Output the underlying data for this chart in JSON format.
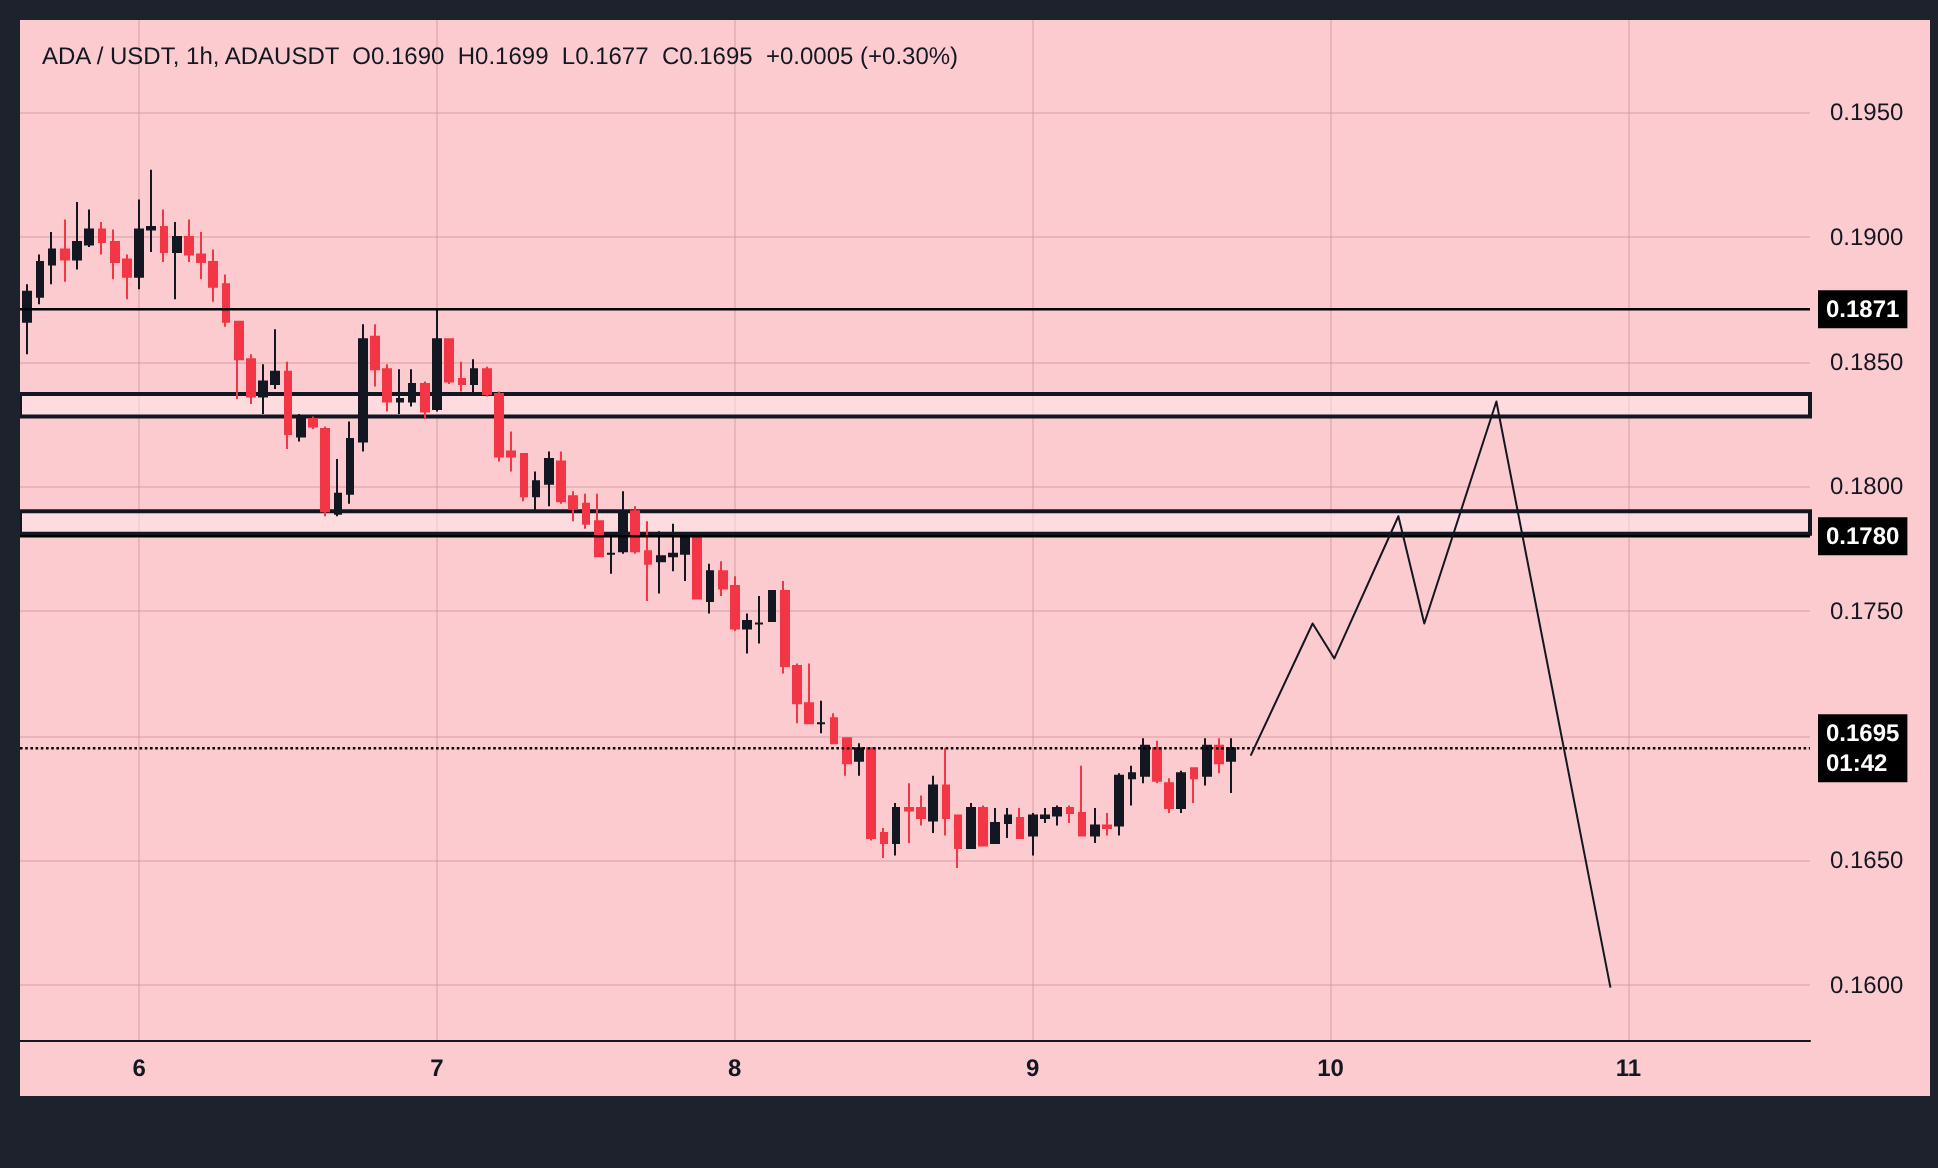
{
  "chart_data": {
    "type": "candlestick",
    "title": "ADA / USDT, 1h, ADAUSDT  O0.1690  H0.1699  L0.1677  C0.1695  +0.0005 (+0.30%)",
    "x": [
      5.625,
      5.6667,
      5.7083,
      5.75,
      5.7917,
      5.8333,
      5.875,
      5.9167,
      5.9583,
      6,
      6.0417,
      6.0833,
      6.125,
      6.1667,
      6.2083,
      6.25,
      6.2917,
      6.3333,
      6.375,
      6.4167,
      6.4583,
      6.5,
      6.5417,
      6.5833,
      6.625,
      6.6667,
      6.7083,
      6.75,
      6.7917,
      6.8333,
      6.875,
      6.9167,
      6.9583,
      7,
      7.0417,
      7.0833,
      7.125,
      7.1667,
      7.2083,
      7.25,
      7.2917,
      7.3333,
      7.375,
      7.4167,
      7.4583,
      7.5,
      7.5417,
      7.5833,
      7.625,
      7.6667,
      7.7083,
      7.75,
      7.7917,
      7.8333,
      7.875,
      7.9167,
      7.9583,
      8,
      8.0417,
      8.0833,
      8.125,
      8.1667,
      8.2083,
      8.25,
      8.2917,
      8.3333,
      8.375,
      8.4167,
      8.4583,
      8.5,
      8.5417,
      8.5833,
      8.625,
      8.6667,
      8.7083,
      8.75,
      8.7917,
      8.8333,
      8.875,
      8.9167,
      8.9583,
      9,
      9.0417,
      9.0833,
      9.125,
      9.1667,
      9.2083,
      9.25,
      9.2917,
      9.3333,
      9.375,
      9.4167,
      9.4583,
      9.5,
      9.5417,
      9.5833,
      9.625,
      9.6667
    ],
    "ohlc": [
      [
        0.1866,
        0.1881,
        0.1853,
        0.1878
      ],
      [
        0.1876,
        0.1893,
        0.1873,
        0.189
      ],
      [
        0.1889,
        0.1902,
        0.1881,
        0.1895
      ],
      [
        0.1895,
        0.1907,
        0.1882,
        0.1891
      ],
      [
        0.1891,
        0.1914,
        0.1887,
        0.1898
      ],
      [
        0.1897,
        0.1911,
        0.1896,
        0.1903
      ],
      [
        0.1903,
        0.1906,
        0.1893,
        0.1898
      ],
      [
        0.1898,
        0.1903,
        0.1883,
        0.189
      ],
      [
        0.1891,
        0.1893,
        0.1875,
        0.1884
      ],
      [
        0.1884,
        0.1915,
        0.1879,
        0.1903
      ],
      [
        0.1903,
        0.1927,
        0.1894,
        0.1904
      ],
      [
        0.1904,
        0.1911,
        0.189,
        0.1894
      ],
      [
        0.1894,
        0.1906,
        0.1875,
        0.19
      ],
      [
        0.19,
        0.1907,
        0.189,
        0.1893
      ],
      [
        0.1893,
        0.1902,
        0.1883,
        0.189
      ],
      [
        0.189,
        0.1895,
        0.1874,
        0.188
      ],
      [
        0.1881,
        0.1885,
        0.1864,
        0.1866
      ],
      [
        0.1866,
        0.1866,
        0.1835,
        0.1851
      ],
      [
        0.1851,
        0.1853,
        0.1833,
        0.1836
      ],
      [
        0.1836,
        0.1849,
        0.1829,
        0.1842
      ],
      [
        0.1841,
        0.1863,
        0.1839,
        0.1846
      ],
      [
        0.1846,
        0.185,
        0.1815,
        0.1821
      ],
      [
        0.182,
        0.1829,
        0.1818,
        0.1827
      ],
      [
        0.1827,
        0.1828,
        0.1823,
        0.1824
      ],
      [
        0.1823,
        0.1824,
        0.1788,
        0.179
      ],
      [
        0.1789,
        0.1811,
        0.1788,
        0.1797
      ],
      [
        0.1797,
        0.1826,
        0.1793,
        0.1819
      ],
      [
        0.1818,
        0.1865,
        0.1814,
        0.1859
      ],
      [
        0.186,
        0.1865,
        0.184,
        0.1847
      ],
      [
        0.1847,
        0.1849,
        0.183,
        0.1834
      ],
      [
        0.1834,
        0.1847,
        0.1829,
        0.1835
      ],
      [
        0.1834,
        0.1847,
        0.1832,
        0.1841
      ],
      [
        0.1841,
        0.1842,
        0.1827,
        0.183
      ],
      [
        0.1831,
        0.1871,
        0.183,
        0.1859
      ],
      [
        0.1859,
        0.1859,
        0.1841,
        0.1842
      ],
      [
        0.1843,
        0.185,
        0.1838,
        0.1841
      ],
      [
        0.1841,
        0.1851,
        0.1837,
        0.1847
      ],
      [
        0.1847,
        0.1848,
        0.1836,
        0.1837
      ],
      [
        0.1837,
        0.1838,
        0.181,
        0.1812
      ],
      [
        0.1814,
        0.1822,
        0.1806,
        0.1812
      ],
      [
        0.1813,
        0.1813,
        0.1794,
        0.1796
      ],
      [
        0.1796,
        0.1806,
        0.179,
        0.1802
      ],
      [
        0.1801,
        0.1814,
        0.1792,
        0.1811
      ],
      [
        0.181,
        0.1814,
        0.1793,
        0.1794
      ],
      [
        0.1796,
        0.1798,
        0.1786,
        0.1791
      ],
      [
        0.1793,
        0.1797,
        0.1783,
        0.1785
      ],
      [
        0.1786,
        0.1797,
        0.1772,
        0.1772
      ],
      [
        0.1773,
        0.178,
        0.1765,
        0.1773
      ],
      [
        0.1774,
        0.1798,
        0.1773,
        0.179
      ],
      [
        0.179,
        0.1792,
        0.1773,
        0.1774
      ],
      [
        0.1774,
        0.1786,
        0.1754,
        0.1769
      ],
      [
        0.177,
        0.1782,
        0.1757,
        0.1772
      ],
      [
        0.1772,
        0.1785,
        0.1766,
        0.1773
      ],
      [
        0.1773,
        0.1781,
        0.1762,
        0.178
      ],
      [
        0.178,
        0.178,
        0.1755,
        0.1755
      ],
      [
        0.1754,
        0.1769,
        0.1749,
        0.1766
      ],
      [
        0.1766,
        0.177,
        0.1756,
        0.1759
      ],
      [
        0.176,
        0.1764,
        0.1742,
        0.1743
      ],
      [
        0.1743,
        0.1749,
        0.1733,
        0.1746
      ],
      [
        0.1745,
        0.1756,
        0.1737,
        0.1745
      ],
      [
        0.1746,
        0.1758,
        0.1746,
        0.1758
      ],
      [
        0.1758,
        0.1762,
        0.1725,
        0.1728
      ],
      [
        0.1728,
        0.1729,
        0.1705,
        0.1713
      ],
      [
        0.1713,
        0.1729,
        0.1705,
        0.1705
      ],
      [
        0.1705,
        0.1714,
        0.1701,
        0.1705
      ],
      [
        0.1707,
        0.1709,
        0.1697,
        0.1697
      ],
      [
        0.1699,
        0.1699,
        0.1684,
        0.1689
      ],
      [
        0.169,
        0.1697,
        0.1684,
        0.1695
      ],
      [
        0.1695,
        0.1695,
        0.1658,
        0.1659
      ],
      [
        0.1661,
        0.1663,
        0.1651,
        0.1657
      ],
      [
        0.1657,
        0.1673,
        0.1652,
        0.1671
      ],
      [
        0.1671,
        0.1681,
        0.1657,
        0.167
      ],
      [
        0.1671,
        0.1676,
        0.1664,
        0.1667
      ],
      [
        0.1666,
        0.1684,
        0.1661,
        0.168
      ],
      [
        0.168,
        0.1695,
        0.166,
        0.1667
      ],
      [
        0.1668,
        0.1668,
        0.1647,
        0.1655
      ],
      [
        0.1655,
        0.1673,
        0.1655,
        0.1671
      ],
      [
        0.1671,
        0.1672,
        0.1656,
        0.1656
      ],
      [
        0.1657,
        0.1671,
        0.1657,
        0.1665
      ],
      [
        0.1665,
        0.1671,
        0.1659,
        0.1668
      ],
      [
        0.1667,
        0.1671,
        0.1659,
        0.1659
      ],
      [
        0.166,
        0.1669,
        0.1652,
        0.1668
      ],
      [
        0.1667,
        0.1671,
        0.1665,
        0.1668
      ],
      [
        0.1668,
        0.1672,
        0.1664,
        0.1671
      ],
      [
        0.1671,
        0.1672,
        0.1665,
        0.1669
      ],
      [
        0.1669,
        0.1688,
        0.166,
        0.166
      ],
      [
        0.166,
        0.1671,
        0.1657,
        0.1664
      ],
      [
        0.1664,
        0.1669,
        0.166,
        0.1663
      ],
      [
        0.1664,
        0.1685,
        0.166,
        0.1684
      ],
      [
        0.1683,
        0.1688,
        0.1672,
        0.1685
      ],
      [
        0.1684,
        0.1699,
        0.1681,
        0.1696
      ],
      [
        0.1695,
        0.1698,
        0.1681,
        0.1682
      ],
      [
        0.1681,
        0.1683,
        0.1669,
        0.1671
      ],
      [
        0.1671,
        0.1686,
        0.1669,
        0.1685
      ],
      [
        0.1687,
        0.1687,
        0.1673,
        0.1683
      ],
      [
        0.1684,
        0.1699,
        0.168,
        0.1696
      ],
      [
        0.1696,
        0.1699,
        0.1685,
        0.1689
      ],
      [
        0.169,
        0.1699,
        0.1677,
        0.1695
      ]
    ],
    "colors": [
      "#131722",
      "#131722",
      "#131722",
      "#f23645",
      "#131722",
      "#131722",
      "#f23645",
      "#f23645",
      "#f23645",
      "#131722",
      "#131722",
      "#f23645",
      "#131722",
      "#f23645",
      "#f23645",
      "#f23645",
      "#f23645",
      "#f23645",
      "#f23645",
      "#131722",
      "#131722",
      "#f23645",
      "#131722",
      "#f23645",
      "#f23645",
      "#131722",
      "#131722",
      "#131722",
      "#f23645",
      "#f23645",
      "#131722",
      "#131722",
      "#f23645",
      "#131722",
      "#f23645",
      "#f23645",
      "#131722",
      "#f23645",
      "#f23645",
      "#f23645",
      "#f23645",
      "#131722",
      "#131722",
      "#f23645",
      "#f23645",
      "#f23645",
      "#f23645",
      "#131722",
      "#131722",
      "#f23645",
      "#f23645",
      "#131722",
      "#131722",
      "#131722",
      "#f23645",
      "#131722",
      "#f23645",
      "#f23645",
      "#131722",
      "#131722",
      "#131722",
      "#f23645",
      "#f23645",
      "#f23645",
      "#131722",
      "#f23645",
      "#f23645",
      "#131722",
      "#f23645",
      "#f23645",
      "#131722",
      "#f23645",
      "#f23645",
      "#131722",
      "#f23645",
      "#f23645",
      "#131722",
      "#f23645",
      "#131722",
      "#131722",
      "#f23645",
      "#131722",
      "#131722",
      "#131722",
      "#f23645",
      "#f23645",
      "#131722",
      "#f23645",
      "#131722",
      "#131722",
      "#131722",
      "#f23645",
      "#f23645",
      "#131722",
      "#f23645",
      "#131722",
      "#f23645",
      "#131722"
    ],
    "series": [
      {
        "type": "line",
        "color": "#131722",
        "x": [
          9.732,
          9.94,
          10.013,
          10.228,
          10.315,
          10.557,
          10.94
        ],
        "values": [
          0.1692,
          0.1745,
          0.1731,
          0.1788,
          0.1745,
          0.1834,
          0.1599
        ]
      }
    ],
    "marker": "none",
    "xlim": [
      5.6,
      11.61
    ],
    "xticks": [
      6,
      7,
      8,
      9,
      10,
      11
    ],
    "ylim": [
      0.1578,
      0.1987
    ],
    "yticks": [
      {
        "value": 0.16,
        "label": "0.1600"
      },
      {
        "value": 0.165,
        "label": "0.1650"
      },
      {
        "value": 0.17,
        "label": null
      },
      {
        "value": 0.175,
        "label": "0.1750"
      },
      {
        "value": 0.18,
        "label": "0.1800"
      },
      {
        "value": 0.185,
        "label": "0.1850"
      },
      {
        "value": 0.19,
        "label": "0.1900"
      },
      {
        "value": 0.195,
        "label": "0.1950"
      }
    ],
    "grid": true,
    "ref_lines": [
      {
        "axis": "y",
        "value": 0.1871,
        "label": "0.1871",
        "line_style": "solid"
      },
      {
        "axis": "y",
        "value": 0.178,
        "label": "0.1780",
        "line_style": "solid"
      },
      {
        "axis": "y",
        "value": 0.1695,
        "label": "0.1695\n01:42",
        "line_style": "dotted"
      }
    ],
    "bands": [
      {
        "axis": "y",
        "from": 0.1828,
        "to": 0.1837
      },
      {
        "axis": "y",
        "from": 0.1781,
        "to": 0.179
      }
    ]
  }
}
